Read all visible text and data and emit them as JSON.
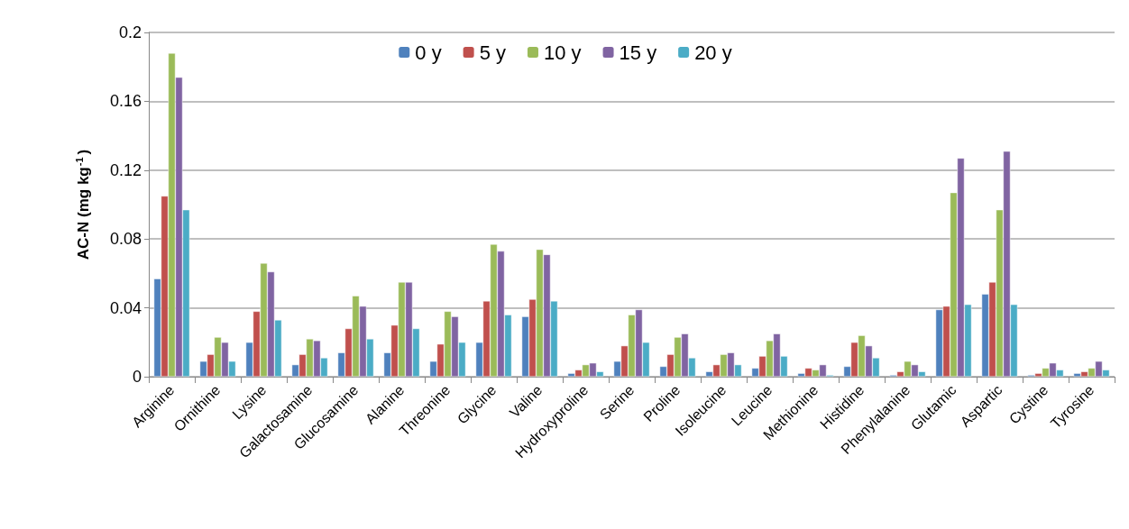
{
  "chart_data": {
    "type": "bar",
    "ylabel": "AC-N (mg kg$^{-1}$)",
    "categories": [
      "Arginine",
      "Ornithine",
      "Lysine",
      "Galactosamine",
      "Glucosamine",
      "Alanine",
      "Threonine",
      "Glycine",
      "Valine",
      "Hydroxyproline",
      "Serine",
      "Proline",
      "Isoleucine",
      "Leucine",
      "Methionine",
      "Histidine",
      "Phenylalanine",
      "Glutamic",
      "Aspartic",
      "Cystine",
      "Tyrosine"
    ],
    "series": [
      {
        "name": "0 y",
        "color": "#4f81bd",
        "values": [
          0.057,
          0.009,
          0.02,
          0.007,
          0.014,
          0.014,
          0.009,
          0.02,
          0.035,
          0.002,
          0.009,
          0.006,
          0.003,
          0.005,
          0.002,
          0.006,
          0.001,
          0.039,
          0.048,
          0.001,
          0.002
        ]
      },
      {
        "name": "5 y",
        "color": "#c0504d",
        "values": [
          0.105,
          0.013,
          0.038,
          0.013,
          0.028,
          0.03,
          0.019,
          0.044,
          0.045,
          0.004,
          0.018,
          0.013,
          0.007,
          0.012,
          0.005,
          0.02,
          0.003,
          0.041,
          0.055,
          0.002,
          0.003
        ]
      },
      {
        "name": "10 y",
        "color": "#9bbb59",
        "values": [
          0.188,
          0.023,
          0.066,
          0.022,
          0.047,
          0.055,
          0.038,
          0.077,
          0.074,
          0.007,
          0.036,
          0.023,
          0.013,
          0.021,
          0.004,
          0.024,
          0.009,
          0.107,
          0.097,
          0.005,
          0.005
        ]
      },
      {
        "name": "15 y",
        "color": "#8064a2",
        "values": [
          0.174,
          0.02,
          0.061,
          0.021,
          0.041,
          0.055,
          0.035,
          0.073,
          0.071,
          0.008,
          0.039,
          0.025,
          0.014,
          0.025,
          0.007,
          0.018,
          0.007,
          0.127,
          0.131,
          0.008,
          0.009
        ]
      },
      {
        "name": "20 y",
        "color": "#4bacc6",
        "values": [
          0.097,
          0.009,
          0.033,
          0.011,
          0.022,
          0.028,
          0.02,
          0.036,
          0.044,
          0.003,
          0.02,
          0.011,
          0.007,
          0.012,
          0.001,
          0.011,
          0.003,
          0.042,
          0.042,
          0.004,
          0.004
        ]
      }
    ],
    "ylim": [
      0,
      0.2
    ],
    "yticks": [
      0,
      0.04,
      0.08,
      0.12,
      0.16,
      0.2
    ],
    "grid": "y",
    "legend": "top"
  }
}
